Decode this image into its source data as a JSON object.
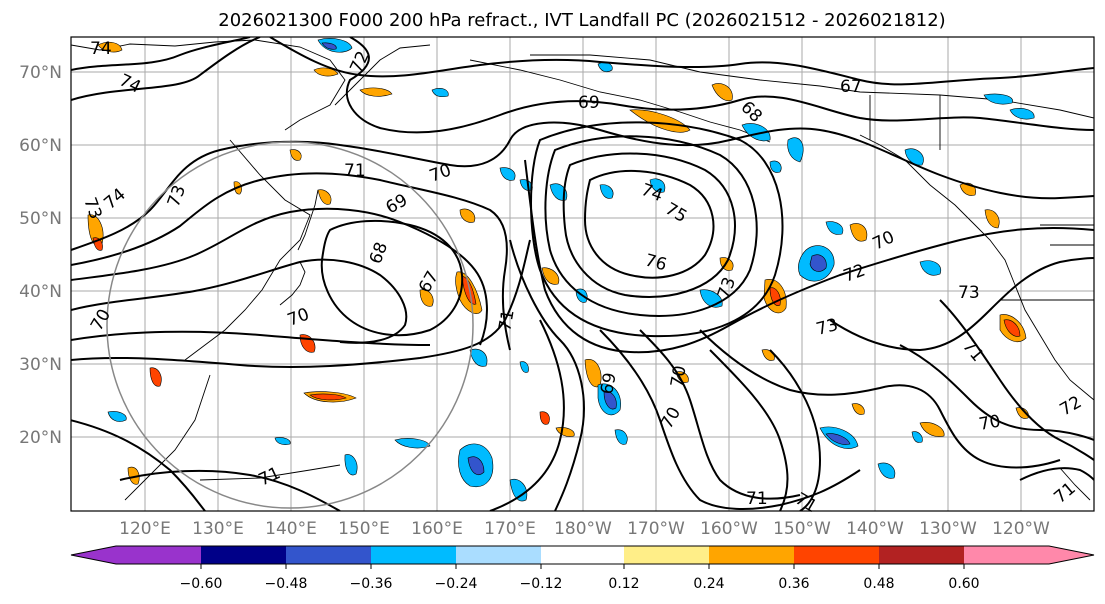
{
  "title": "2026021300 F000 200 hPa refract., IVT Landfall PC (2026021512 - 2026021812)",
  "lat_labels": [
    "70°N",
    "60°N",
    "50°N",
    "40°N",
    "30°N",
    "20°N"
  ],
  "lon_labels": [
    "120°E",
    "130°E",
    "140°E",
    "150°E",
    "160°E",
    "170°E",
    "180°W",
    "170°W",
    "160°W",
    "150°W",
    "140°W",
    "130°W",
    "120°W"
  ],
  "colorbar": {
    "colors": [
      "#9933cc",
      "#000088",
      "#3355cc",
      "#00bbff",
      "#aaddff",
      "#ffffff",
      "#ffee88",
      "#ffa500",
      "#ff4400",
      "#b22222",
      "#ff88aa"
    ],
    "tick_labels": [
      "−0.60",
      "−0.48",
      "−0.36",
      "−0.24",
      "−0.12",
      "0.12",
      "0.24",
      "0.36",
      "0.48",
      "0.60"
    ]
  },
  "contour_labels": [
    "74",
    "74",
    "72",
    "73",
    "74",
    "73",
    "71",
    "70",
    "69",
    "68",
    "67",
    "70",
    "71",
    "69",
    "68",
    "74",
    "75",
    "76",
    "73",
    "67",
    "72",
    "70",
    "73",
    "73",
    "71",
    "70",
    "69",
    "70",
    "70",
    "71",
    "71",
    "71",
    "70",
    "72",
    "71"
  ]
}
